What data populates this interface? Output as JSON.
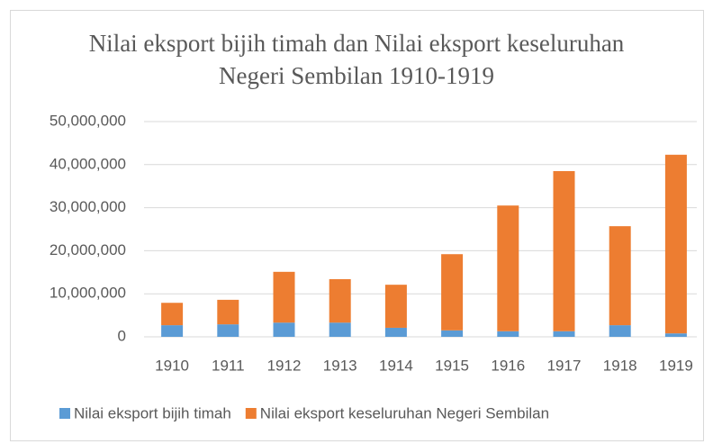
{
  "chart_data": {
    "type": "bar",
    "stacked": true,
    "title": "Nilai eksport bijih timah dan Nilai eksport keseluruhan Negeri Sembilan 1910-1919",
    "categories": [
      "1910",
      "1911",
      "1912",
      "1913",
      "1914",
      "1915",
      "1916",
      "1917",
      "1918",
      "1919"
    ],
    "series": [
      {
        "name": "Nilai eksport bijih timah",
        "color": "#5b9bd5",
        "values": [
          2700000,
          2900000,
          3300000,
          3300000,
          2100000,
          1500000,
          1300000,
          1300000,
          2700000,
          800000
        ]
      },
      {
        "name": "Nilai eksport keseluruhan Negeri Sembilan",
        "color": "#ed7d31",
        "values": [
          5200000,
          5700000,
          11800000,
          10100000,
          10000000,
          17700000,
          29200000,
          37200000,
          23000000,
          41500000
        ]
      }
    ],
    "ylim": [
      0,
      50000000
    ],
    "yticks": [
      0,
      {
        "value": 10000000,
        "label": "10,000,000"
      },
      {
        "value": 20000000,
        "label": "20,000,000"
      },
      {
        "value": 30000000,
        "label": "30,000,000"
      },
      {
        "value": 40000000,
        "label": "40,000,000"
      },
      {
        "value": 50000000,
        "label": "50,000,000"
      }
    ],
    "grid": true,
    "legend": "bottom"
  }
}
